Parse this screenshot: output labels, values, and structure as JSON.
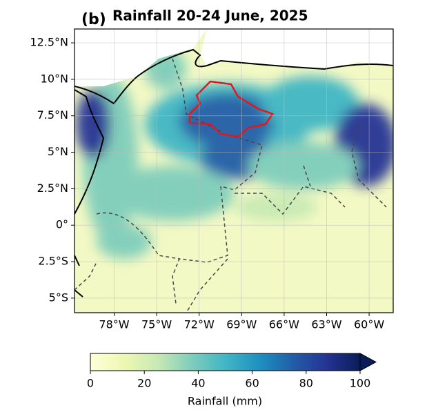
{
  "panel_label": "(b)",
  "title": "Rainfall 20-24 June, 2025",
  "map": {
    "xlim": [
      -80.8,
      -58.3
    ],
    "ylim": [
      -6.0,
      13.45
    ],
    "xticks": [
      {
        "value": -78,
        "label": "78°W"
      },
      {
        "value": -75,
        "label": "75°W"
      },
      {
        "value": -72,
        "label": "72°W"
      },
      {
        "value": -69,
        "label": "69°W"
      },
      {
        "value": -66,
        "label": "66°W"
      },
      {
        "value": -63,
        "label": "63°W"
      },
      {
        "value": -60,
        "label": "60°W"
      }
    ],
    "yticks": [
      {
        "value": 12.5,
        "label": "12.5°N"
      },
      {
        "value": 10,
        "label": "10°N"
      },
      {
        "value": 7.5,
        "label": "7.5°N"
      },
      {
        "value": 5,
        "label": "5°N"
      },
      {
        "value": 2.5,
        "label": "2.5°N"
      },
      {
        "value": 0,
        "label": "0°"
      },
      {
        "value": -2.5,
        "label": "2.5°S"
      },
      {
        "value": -5,
        "label": "5°S"
      }
    ],
    "grid": true
  },
  "colorbar": {
    "label": "Rainfall (mm)",
    "lim": [
      0,
      100
    ],
    "ticks": [
      0,
      20,
      40,
      60,
      80,
      100
    ],
    "colors": [
      "#ffffd9",
      "#edf8b1",
      "#c7e9b4",
      "#7fcdbb",
      "#41b6c4",
      "#1d91c0",
      "#225ea8",
      "#253494",
      "#081d58"
    ]
  }
}
